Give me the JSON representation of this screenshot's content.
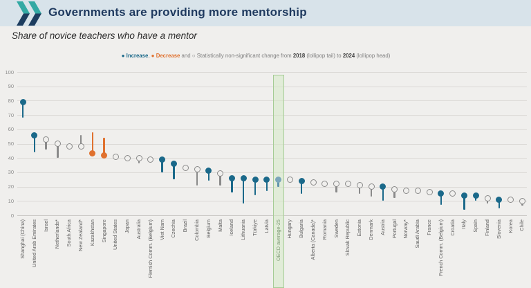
{
  "header": {
    "title": "Governments are providing more mentorship"
  },
  "subtitle": "Share of novice teachers who have a mentor",
  "legend": {
    "marker_filled": "●",
    "marker_open": "○",
    "increase_label": "Increase",
    "sep1": ", ",
    "decrease_label": "Decrease",
    "and_text": " and ",
    "nonsig_text": " Statistically non-significant change from ",
    "year_start": "2018",
    "tail_text": " (lollipop tail) to ",
    "year_end": "2024",
    "head_text": " (lollipop head)"
  },
  "colors": {
    "increase": "#1b698a",
    "decrease": "#e0712f",
    "nonsignificant": "#8a8a8a",
    "oecd_head": "#7ba6ba",
    "oecd_stem": "#5f93ab",
    "band_fill": "#e7f2df",
    "band_border": "#a5cc95",
    "header_bg": "#d8e3ea",
    "title_text": "#1f3a5f",
    "logo_teal": "#33a9a4",
    "logo_navy": "#1d3d5f",
    "background": "#f0efed"
  },
  "chart_data": {
    "type": "lollipop",
    "title": "Governments are providing more mentorship",
    "subtitle": "Share of novice teachers who have a mentor",
    "ylabel": "",
    "ylim": [
      0,
      100
    ],
    "ytick_step": 10,
    "grid": true,
    "year_tail": 2018,
    "year_head": 2024,
    "highlight_category": "OECD average-25",
    "series": [
      {
        "label": "Shanghai (China)",
        "y2024": 79,
        "y2018": 68,
        "change": "increase"
      },
      {
        "label": "United Arab Emirates",
        "y2024": 56,
        "y2018": 44,
        "change": "increase"
      },
      {
        "label": "Israel",
        "y2024": 53,
        "y2018": 46,
        "change": "nonsig"
      },
      {
        "label": "Netherlands*",
        "y2024": 50,
        "y2018": 40,
        "change": "nonsig"
      },
      {
        "label": "South Africa",
        "y2024": 48,
        "y2018": 48,
        "change": "nonsig"
      },
      {
        "label": "New Zealand*",
        "y2024": 48,
        "y2018": 56,
        "change": "nonsig"
      },
      {
        "label": "Kazakhstan",
        "y2024": 43,
        "y2018": 58,
        "change": "decrease"
      },
      {
        "label": "Singapore",
        "y2024": 42,
        "y2018": 54,
        "change": "decrease"
      },
      {
        "label": "United States",
        "y2024": 41,
        "y2018": 41,
        "change": "nonsig"
      },
      {
        "label": "Japan",
        "y2024": 40,
        "y2018": 40,
        "change": "nonsig"
      },
      {
        "label": "Australia",
        "y2024": 40,
        "y2018": 36,
        "change": "nonsig"
      },
      {
        "label": "Flemish Comm. (Belgium)",
        "y2024": 39,
        "y2018": 39,
        "change": "nonsig"
      },
      {
        "label": "Viet Nam",
        "y2024": 39,
        "y2018": 30,
        "change": "increase"
      },
      {
        "label": "Czechia",
        "y2024": 36,
        "y2018": 25,
        "change": "increase"
      },
      {
        "label": "Brazil",
        "y2024": 33,
        "y2018": 33,
        "change": "nonsig"
      },
      {
        "label": "Colombia",
        "y2024": 32,
        "y2018": 21,
        "change": "nonsig"
      },
      {
        "label": "Belgium",
        "y2024": 31,
        "y2018": 24,
        "change": "increase"
      },
      {
        "label": "Malta",
        "y2024": 29,
        "y2018": 21,
        "change": "nonsig"
      },
      {
        "label": "Iceland",
        "y2024": 26,
        "y2018": 16,
        "change": "increase"
      },
      {
        "label": "Lithuania",
        "y2024": 26,
        "y2018": 8,
        "change": "increase"
      },
      {
        "label": "Türkiye",
        "y2024": 25,
        "y2018": 14,
        "change": "increase"
      },
      {
        "label": "Latvia",
        "y2024": 25,
        "y2018": 17,
        "change": "increase"
      },
      {
        "label": "OECD average-25",
        "y2024": 25,
        "y2018": 20,
        "change": "average"
      },
      {
        "label": "Hungary",
        "y2024": 25,
        "y2018": 25,
        "change": "nonsig"
      },
      {
        "label": "Bulgaria",
        "y2024": 24,
        "y2018": 15,
        "change": "increase"
      },
      {
        "label": "Alberta (Canada)*",
        "y2024": 23,
        "y2018": 23,
        "change": "nonsig"
      },
      {
        "label": "Romania",
        "y2024": 22,
        "y2018": 22,
        "change": "nonsig"
      },
      {
        "label": "Sweden",
        "y2024": 22,
        "y2018": 16,
        "change": "nonsig"
      },
      {
        "label": "Slovak Republic",
        "y2024": 22,
        "y2018": 22,
        "change": "nonsig"
      },
      {
        "label": "Estonia",
        "y2024": 21,
        "y2018": 15,
        "change": "nonsig"
      },
      {
        "label": "Denmark",
        "y2024": 20,
        "y2018": 13,
        "change": "nonsig"
      },
      {
        "label": "Austria",
        "y2024": 20,
        "y2018": 10,
        "change": "increase"
      },
      {
        "label": "Portugal",
        "y2024": 18,
        "y2018": 12,
        "change": "nonsig"
      },
      {
        "label": "Norway*",
        "y2024": 17,
        "y2018": 17,
        "change": "nonsig"
      },
      {
        "label": "Saudi Arabia",
        "y2024": 17,
        "y2018": 17,
        "change": "nonsig"
      },
      {
        "label": "France",
        "y2024": 16,
        "y2018": 16,
        "change": "nonsig"
      },
      {
        "label": "French Comm. (Belgium)",
        "y2024": 15,
        "y2018": 7,
        "change": "increase"
      },
      {
        "label": "Croatia",
        "y2024": 15,
        "y2018": 15,
        "change": "nonsig"
      },
      {
        "label": "Italy",
        "y2024": 14,
        "y2018": 4,
        "change": "increase"
      },
      {
        "label": "Spain",
        "y2024": 14,
        "y2018": 10,
        "change": "increase"
      },
      {
        "label": "Finland",
        "y2024": 12,
        "y2018": 8,
        "change": "nonsig"
      },
      {
        "label": "Slovenia",
        "y2024": 11,
        "y2018": 5,
        "change": "increase"
      },
      {
        "label": "Korea",
        "y2024": 11,
        "y2018": 13,
        "change": "nonsig"
      },
      {
        "label": "Chile",
        "y2024": 10,
        "y2018": 7,
        "change": "nonsig"
      }
    ]
  }
}
